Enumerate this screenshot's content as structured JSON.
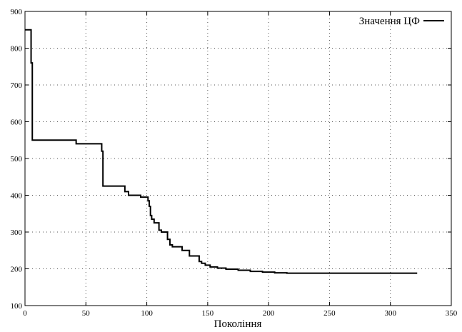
{
  "chart_data": {
    "type": "line",
    "title": "",
    "xlabel": "Покоління",
    "ylabel": "",
    "xlim": [
      0,
      350
    ],
    "ylim": [
      100,
      900
    ],
    "xticks": [
      0,
      50,
      100,
      150,
      200,
      250,
      300,
      350
    ],
    "yticks": [
      100,
      200,
      300,
      400,
      500,
      600,
      700,
      800,
      900
    ],
    "grid": true,
    "legend_position": "top-right",
    "step": true,
    "series": [
      {
        "name": "Значення ЦФ",
        "color": "#000000",
        "x": [
          0,
          4,
          5,
          6,
          42,
          62,
          63,
          64,
          80,
          82,
          85,
          95,
          101,
          102,
          103,
          104,
          106,
          110,
          112,
          117,
          119,
          121,
          129,
          135,
          143,
          145,
          148,
          152,
          158,
          165,
          175,
          185,
          195,
          205,
          215,
          322
        ],
        "y": [
          850,
          850,
          760,
          550,
          540,
          540,
          520,
          425,
          425,
          410,
          400,
          395,
          385,
          370,
          345,
          335,
          325,
          305,
          300,
          280,
          265,
          260,
          250,
          235,
          220,
          215,
          210,
          205,
          202,
          199,
          196,
          193,
          191,
          189,
          188,
          188
        ]
      }
    ]
  }
}
